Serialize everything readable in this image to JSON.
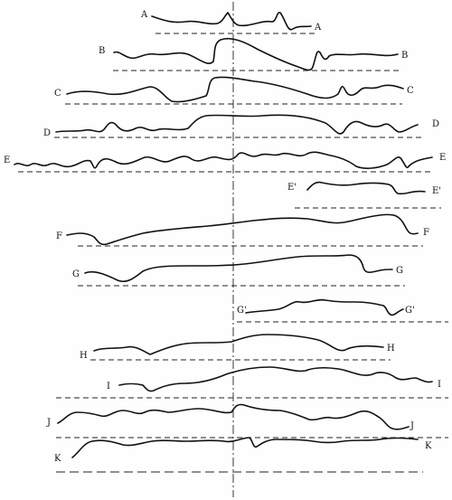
{
  "figure": {
    "rows": [
      {
        "id": "A",
        "left": "A",
        "right": "A"
      },
      {
        "id": "B",
        "left": "B",
        "right": "B"
      },
      {
        "id": "C",
        "left": "C",
        "right": "C"
      },
      {
        "id": "D",
        "left": "D",
        "right": "D"
      },
      {
        "id": "E",
        "left": "E",
        "right": "E"
      },
      {
        "id": "E2",
        "left": "E'",
        "right": "E'"
      },
      {
        "id": "F",
        "left": "F",
        "right": "F"
      },
      {
        "id": "G",
        "left": "G",
        "right": "G"
      },
      {
        "id": "G2",
        "left": "G'",
        "right": "G'"
      },
      {
        "id": "H",
        "left": "H",
        "right": "H"
      },
      {
        "id": "I",
        "left": "I",
        "right": "I"
      },
      {
        "id": "J",
        "left": "J",
        "right": "J"
      },
      {
        "id": "K",
        "left": "K",
        "right": "K"
      }
    ]
  }
}
